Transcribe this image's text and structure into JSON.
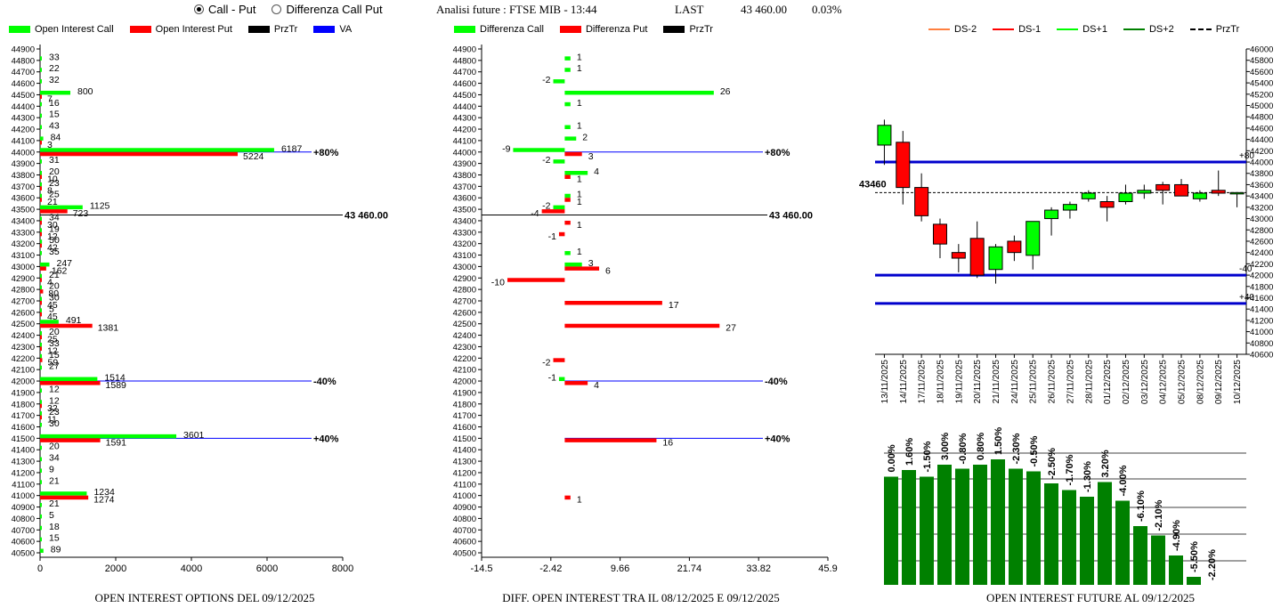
{
  "mode_selector": {
    "options": [
      {
        "label": "Call - Put",
        "selected": true
      },
      {
        "label": "Differenza Call Put",
        "selected": false
      }
    ]
  },
  "header": {
    "title": "Analisi future : FTSE MIB - 13:44",
    "last_label": "LAST",
    "last_value": "43 460.00",
    "change": "0.03%"
  },
  "colors": {
    "call": "#00ff00",
    "put": "#ff0000",
    "prztr": "#000000",
    "va": "#0000ff",
    "ds_minus_2": "#ff8040",
    "ds_minus_1": "#ff0000",
    "ds_plus_1": "#00ff00",
    "ds_plus_2": "#008000",
    "volume_bar": "#008000",
    "level_line": "#0000cc"
  },
  "captions": {
    "left": "OPEN INTEREST OPTIONS DEL 09/12/2025",
    "middle": "DIFF. OPEN INTEREST TRA IL 08/12/2025 E 09/12/2025",
    "right": "OPEN INTEREST FUTURE AL 09/12/2025"
  },
  "chart_data": [
    {
      "type": "bar",
      "orientation": "horizontal",
      "legend": [
        "Open Interest Call",
        "Open Interest Put",
        "PrzTr",
        "VA"
      ],
      "legend_colors": [
        "#00ff00",
        "#ff0000",
        "#000000",
        "#0000ff"
      ],
      "strike_min": 40500,
      "strike_max": 44900,
      "strike_step": 100,
      "xlim": [
        0,
        8000
      ],
      "xticks": [
        "0",
        "2000",
        "4000",
        "6000",
        "8000"
      ],
      "calls": [
        {
          "strike": 44800,
          "value": 33
        },
        {
          "strike": 44700,
          "value": 22
        },
        {
          "strike": 44600,
          "value": 32
        },
        {
          "strike": 44500,
          "value": 800
        },
        {
          "strike": 44400,
          "value": 16
        },
        {
          "strike": 44300,
          "value": 15
        },
        {
          "strike": 44200,
          "value": 43
        },
        {
          "strike": 44100,
          "value": 84
        },
        {
          "strike": 44000,
          "value": 6187
        },
        {
          "strike": 43900,
          "value": 31
        },
        {
          "strike": 43800,
          "value": 20
        },
        {
          "strike": 43700,
          "value": 23
        },
        {
          "strike": 43600,
          "value": 25
        },
        {
          "strike": 43500,
          "value": 1125
        },
        {
          "strike": 43400,
          "value": 34
        },
        {
          "strike": 43300,
          "value": 19
        },
        {
          "strike": 43200,
          "value": 50
        },
        {
          "strike": 43100,
          "value": 35
        },
        {
          "strike": 43000,
          "value": 247
        },
        {
          "strike": 42900,
          "value": 21
        },
        {
          "strike": 42800,
          "value": 20
        },
        {
          "strike": 42700,
          "value": 30
        },
        {
          "strike": 42600,
          "value": 5
        },
        {
          "strike": 42500,
          "value": 491
        },
        {
          "strike": 42400,
          "value": 20
        },
        {
          "strike": 42300,
          "value": 33
        },
        {
          "strike": 42200,
          "value": 15
        },
        {
          "strike": 42100,
          "value": 27
        },
        {
          "strike": 42000,
          "value": 1514
        },
        {
          "strike": 41900,
          "value": 12
        },
        {
          "strike": 41800,
          "value": 12
        },
        {
          "strike": 41700,
          "value": 23
        },
        {
          "strike": 41600,
          "value": 30
        },
        {
          "strike": 41500,
          "value": 3601
        },
        {
          "strike": 41400,
          "value": 20
        },
        {
          "strike": 41300,
          "value": 34
        },
        {
          "strike": 41200,
          "value": 9
        },
        {
          "strike": 41100,
          "value": 21
        },
        {
          "strike": 41000,
          "value": 1234
        },
        {
          "strike": 40900,
          "value": 21
        },
        {
          "strike": 40800,
          "value": 5
        },
        {
          "strike": 40700,
          "value": 18
        },
        {
          "strike": 40600,
          "value": 15
        },
        {
          "strike": 40500,
          "value": 89
        }
      ],
      "puts": [
        {
          "strike": 44500,
          "value": 7
        },
        {
          "strike": 44100,
          "value": 3
        },
        {
          "strike": 44000,
          "value": 5224
        },
        {
          "strike": 43800,
          "value": 10
        },
        {
          "strike": 43700,
          "value": 8
        },
        {
          "strike": 43600,
          "value": 21
        },
        {
          "strike": 43500,
          "value": 723
        },
        {
          "strike": 43400,
          "value": 30
        },
        {
          "strike": 43300,
          "value": 12
        },
        {
          "strike": 43200,
          "value": 42
        },
        {
          "strike": 43000,
          "value": 162
        },
        {
          "strike": 42900,
          "value": 4
        },
        {
          "strike": 42800,
          "value": 80
        },
        {
          "strike": 42700,
          "value": 45
        },
        {
          "strike": 42600,
          "value": 45
        },
        {
          "strike": 42500,
          "value": 1381
        },
        {
          "strike": 42400,
          "value": 25
        },
        {
          "strike": 42300,
          "value": 12
        },
        {
          "strike": 42200,
          "value": 59
        },
        {
          "strike": 42000,
          "value": 1589
        },
        {
          "strike": 41800,
          "value": 32
        },
        {
          "strike": 41700,
          "value": 11
        },
        {
          "strike": 41500,
          "value": 1591
        },
        {
          "strike": 41000,
          "value": 1274
        }
      ],
      "reference_lines": [
        {
          "strike": 44000,
          "label": "+80%",
          "color": "#0000ff"
        },
        {
          "strike": 43450,
          "label": "43 460.00",
          "color": "#000000"
        },
        {
          "strike": 42000,
          "label": "-40%",
          "color": "#0000ff"
        },
        {
          "strike": 41500,
          "label": "+40%",
          "color": "#0000ff"
        }
      ]
    },
    {
      "type": "bar",
      "orientation": "horizontal",
      "legend": [
        "Differenza Call",
        "Differenza Put",
        "PrzTr"
      ],
      "legend_colors": [
        "#00ff00",
        "#ff0000",
        "#000000"
      ],
      "strike_min": 40500,
      "strike_max": 44900,
      "strike_step": 100,
      "xlim": [
        -14.5,
        45.9
      ],
      "xticks": [
        "-14.5",
        "-2.42",
        "9.66",
        "21.74",
        "33.82",
        "45.9"
      ],
      "call_diff": [
        {
          "strike": 44800,
          "value": 1
        },
        {
          "strike": 44700,
          "value": 1
        },
        {
          "strike": 44600,
          "value": -2
        },
        {
          "strike": 44500,
          "value": 26
        },
        {
          "strike": 44400,
          "value": 1
        },
        {
          "strike": 44200,
          "value": 1
        },
        {
          "strike": 44100,
          "value": 2
        },
        {
          "strike": 44000,
          "value": -9
        },
        {
          "strike": 43900,
          "value": -2
        },
        {
          "strike": 43800,
          "value": 4
        },
        {
          "strike": 43600,
          "value": 1
        },
        {
          "strike": 43500,
          "value": -2
        },
        {
          "strike": 43100,
          "value": 1
        },
        {
          "strike": 43000,
          "value": 3
        },
        {
          "strike": 42000,
          "value": -1
        }
      ],
      "put_diff": [
        {
          "strike": 44000,
          "value": 3
        },
        {
          "strike": 43800,
          "value": 1
        },
        {
          "strike": 43600,
          "value": 1
        },
        {
          "strike": 43500,
          "value": -4
        },
        {
          "strike": 43400,
          "value": 1
        },
        {
          "strike": 43300,
          "value": -1
        },
        {
          "strike": 43000,
          "value": 6
        },
        {
          "strike": 42900,
          "value": -10
        },
        {
          "strike": 42700,
          "value": 17
        },
        {
          "strike": 42500,
          "value": 27
        },
        {
          "strike": 42200,
          "value": -2
        },
        {
          "strike": 42000,
          "value": 4
        },
        {
          "strike": 41500,
          "value": 16
        },
        {
          "strike": 41000,
          "value": 1
        }
      ],
      "reference_lines": [
        {
          "strike": 44000,
          "label": "+80%",
          "color": "#0000ff"
        },
        {
          "strike": 43450,
          "label": "43 460.00",
          "color": "#000000"
        },
        {
          "strike": 42000,
          "label": "-40%",
          "color": "#0000ff"
        },
        {
          "strike": 41500,
          "label": "+40%",
          "color": "#0000ff"
        }
      ]
    },
    {
      "type": "candlestick",
      "legend": [
        "DS-2",
        "DS-1",
        "DS+1",
        "DS+2",
        "PrzTr"
      ],
      "legend_colors": [
        "#ff8040",
        "#ff0000",
        "#00ff00",
        "#008000",
        "#000000"
      ],
      "ylim": [
        40600,
        46000
      ],
      "yticks": [
        "40600",
        "40800",
        "41000",
        "41200",
        "41400",
        "41600",
        "41800",
        "42000",
        "42200",
        "42400",
        "42600",
        "42800",
        "43000",
        "43200",
        "43400",
        "43600",
        "43800",
        "44000",
        "44200",
        "44400",
        "44600",
        "44800",
        "45000",
        "45200",
        "45400",
        "45600",
        "45800",
        "46000"
      ],
      "last_price_label": "43460",
      "dates": [
        "13/11/2025",
        "14/11/2025",
        "17/11/2025",
        "18/11/2025",
        "19/11/2025",
        "20/11/2025",
        "21/11/2025",
        "24/11/2025",
        "25/11/2025",
        "26/11/2025",
        "27/11/2025",
        "28/11/2025",
        "01/12/2025",
        "02/12/2025",
        "03/12/2025",
        "04/12/2025",
        "05/12/2025",
        "08/12/2025",
        "09/12/2025",
        "10/12/2025"
      ],
      "candles": [
        {
          "open": 44300,
          "high": 44750,
          "low": 43950,
          "close": 44650
        },
        {
          "open": 44350,
          "high": 44550,
          "low": 43250,
          "close": 43550
        },
        {
          "open": 43550,
          "high": 43800,
          "low": 42950,
          "close": 43050
        },
        {
          "open": 42900,
          "high": 43000,
          "low": 42300,
          "close": 42550
        },
        {
          "open": 42400,
          "high": 42550,
          "low": 42050,
          "close": 42300
        },
        {
          "open": 42650,
          "high": 42950,
          "low": 41950,
          "close": 42000
        },
        {
          "open": 42100,
          "high": 42550,
          "low": 41850,
          "close": 42500
        },
        {
          "open": 42600,
          "high": 42700,
          "low": 42250,
          "close": 42400
        },
        {
          "open": 42350,
          "high": 42950,
          "low": 42100,
          "close": 42950
        },
        {
          "open": 43000,
          "high": 43200,
          "low": 42700,
          "close": 43150
        },
        {
          "open": 43150,
          "high": 43300,
          "low": 43000,
          "close": 43250
        },
        {
          "open": 43350,
          "high": 43500,
          "low": 43300,
          "close": 43450
        },
        {
          "open": 43300,
          "high": 43400,
          "low": 42950,
          "close": 43200
        },
        {
          "open": 43300,
          "high": 43600,
          "low": 43250,
          "close": 43450
        },
        {
          "open": 43450,
          "high": 43600,
          "low": 43350,
          "close": 43500
        },
        {
          "open": 43600,
          "high": 43650,
          "low": 43250,
          "close": 43500
        },
        {
          "open": 43600,
          "high": 43700,
          "low": 43400,
          "close": 43400
        },
        {
          "open": 43350,
          "high": 43500,
          "low": 43300,
          "close": 43450
        },
        {
          "open": 43500,
          "high": 43850,
          "low": 43400,
          "close": 43450
        },
        {
          "open": 43460,
          "high": 43460,
          "low": 43200,
          "close": 43460
        }
      ],
      "levels": [
        {
          "value": 44000,
          "label": "+80"
        },
        {
          "value": 42000,
          "label": "-40"
        },
        {
          "value": 41500,
          "label": "+40"
        }
      ],
      "prztr": 43460
    },
    {
      "type": "bar",
      "title": "",
      "labels": [
        "0.00%",
        "1.60%",
        "-1.50%",
        "3.00%",
        "-0.80%",
        "0.80%",
        "1.50%",
        "-2.30%",
        "-0.50%",
        "-2.50%",
        "-1.70%",
        "-1.30%",
        "3.20%",
        "-4.00%",
        "-6.10%",
        "-2.10%",
        "-4.90%",
        "-5.50%",
        "-2.20%"
      ],
      "values": [
        0.0,
        1.6,
        -1.5,
        3.0,
        -0.8,
        0.8,
        1.5,
        -2.3,
        -0.5,
        -2.5,
        -1.7,
        -1.3,
        3.2,
        -4.0,
        -6.1,
        -2.1,
        -4.9,
        -5.5,
        -2.2
      ],
      "relative_heights": [
        0.81,
        0.86,
        0.81,
        0.9,
        0.87,
        0.9,
        0.94,
        0.87,
        0.85,
        0.76,
        0.71,
        0.66,
        0.77,
        0.63,
        0.44,
        0.37,
        0.22,
        0.06,
        0.0
      ]
    }
  ]
}
